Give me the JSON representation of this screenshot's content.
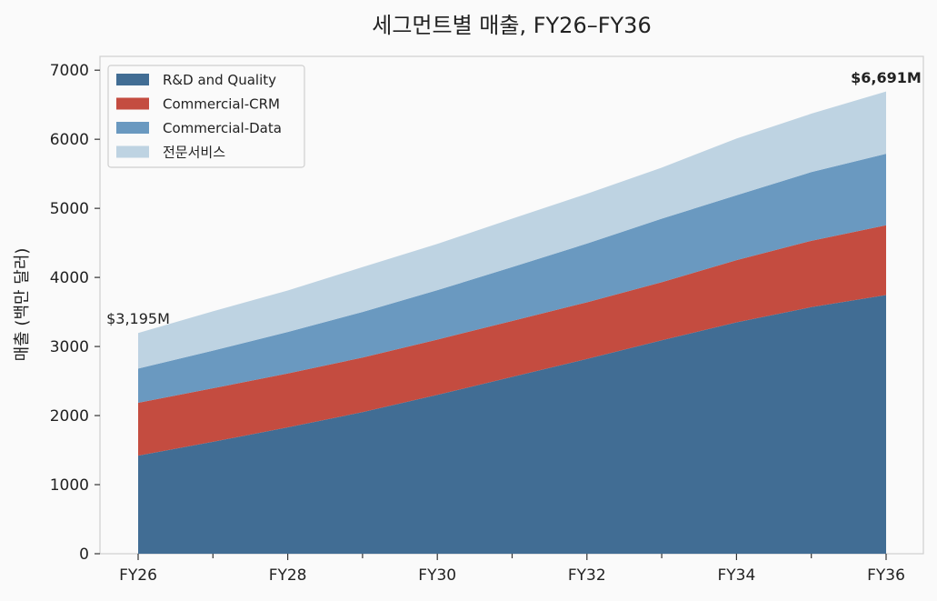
{
  "chart_data": {
    "type": "area",
    "stacked": true,
    "title": "세그먼트별 매출, FY26–FY36",
    "xlabel": "",
    "ylabel": "매출 (백만 달러)",
    "x": [
      "FY26",
      "FY27",
      "FY28",
      "FY29",
      "FY30",
      "FY31",
      "FY32",
      "FY33",
      "FY34",
      "FY35",
      "FY36"
    ],
    "x_tick_labels": [
      "FY26",
      "",
      "FY28",
      "",
      "FY30",
      "",
      "FY32",
      "",
      "FY34",
      "",
      "FY36"
    ],
    "ylim": [
      0,
      7200
    ],
    "y_ticks": [
      0,
      1000,
      2000,
      3000,
      4000,
      5000,
      6000,
      7000
    ],
    "grid": false,
    "legend_position": "top-left",
    "series": [
      {
        "name": "R&D and Quality",
        "color": "#416d94",
        "values": [
          1420,
          1620,
          1830,
          2050,
          2300,
          2560,
          2820,
          3090,
          3350,
          3570,
          3745
        ]
      },
      {
        "name": "Commercial-CRM",
        "color": "#c44c40",
        "values": [
          765,
          775,
          780,
          790,
          800,
          810,
          820,
          840,
          900,
          960,
          1010
        ]
      },
      {
        "name": "Commercial-Data",
        "color": "#6a99c0",
        "values": [
          495,
          545,
          600,
          660,
          715,
          780,
          850,
          920,
          940,
          995,
          1035
        ]
      },
      {
        "name": "전문서비스",
        "color": "#bed3e2",
        "values": [
          515,
          570,
          600,
          650,
          670,
          700,
          720,
          740,
          820,
          845,
          901
        ]
      }
    ],
    "annotations": {
      "start_total": "$3,195M",
      "end_total": "$6,691M"
    }
  }
}
